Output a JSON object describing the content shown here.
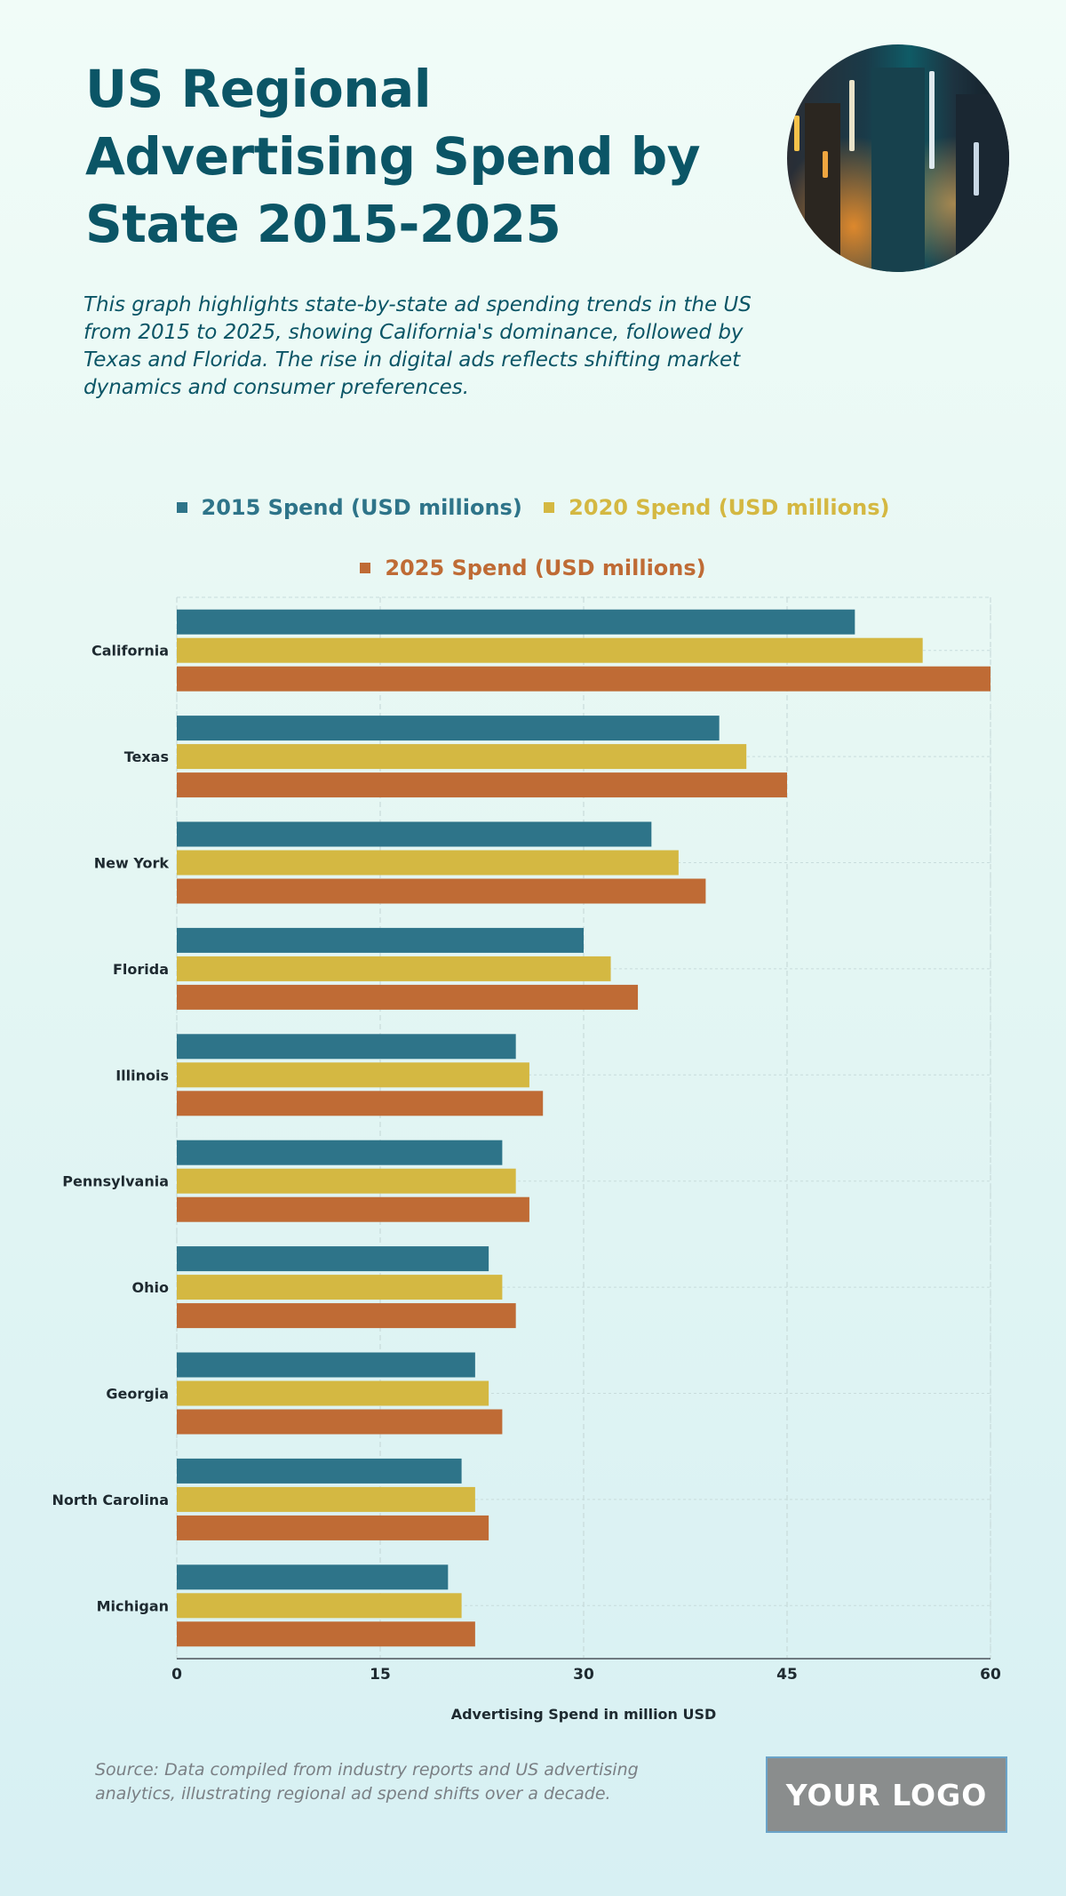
{
  "header": {
    "title": "US Regional Advertising Spend by State 2015-2025",
    "subtitle": "This graph highlights state-by-state ad spending trends in the US from 2015 to 2025, showing California's dominance, followed by Texas and Florida. The rise in digital ads reflects shifting market dynamics and consumer preferences.",
    "image_alt": "city street at night"
  },
  "legend": [
    {
      "label": "2015 Spend (USD millions)",
      "color": "#2e7489"
    },
    {
      "label": "2020 Spend (USD millions)",
      "color": "#d4b842"
    },
    {
      "label": "2025 Spend (USD millions)",
      "color": "#bf6b35"
    }
  ],
  "chart_data": {
    "type": "bar",
    "orientation": "horizontal",
    "title": "US Regional Advertising Spend by State 2015-2025",
    "xlabel": "Advertising Spend in million USD",
    "ylabel": "",
    "xlim": [
      0,
      60
    ],
    "xticks": [
      0,
      15,
      30,
      45,
      60
    ],
    "grid": true,
    "legend_position": "top",
    "categories": [
      "California",
      "Texas",
      "New York",
      "Florida",
      "Illinois",
      "Pennsylvania",
      "Ohio",
      "Georgia",
      "North Carolina",
      "Michigan"
    ],
    "series": [
      {
        "name": "2015 Spend (USD millions)",
        "color": "#2e7489",
        "values": [
          50,
          40,
          35,
          30,
          25,
          24,
          23,
          22,
          21,
          20
        ]
      },
      {
        "name": "2020 Spend (USD millions)",
        "color": "#d4b842",
        "values": [
          55,
          42,
          37,
          32,
          26,
          25,
          24,
          23,
          22,
          21
        ]
      },
      {
        "name": "2025 Spend (USD millions)",
        "color": "#bf6b35",
        "values": [
          60,
          45,
          39,
          34,
          27,
          26,
          25,
          24,
          23,
          22
        ]
      }
    ]
  },
  "footer": {
    "source": "Source: Data compiled from industry reports and US advertising analytics, illustrating regional ad spend shifts over a decade.",
    "logo": "YOUR LOGO"
  }
}
